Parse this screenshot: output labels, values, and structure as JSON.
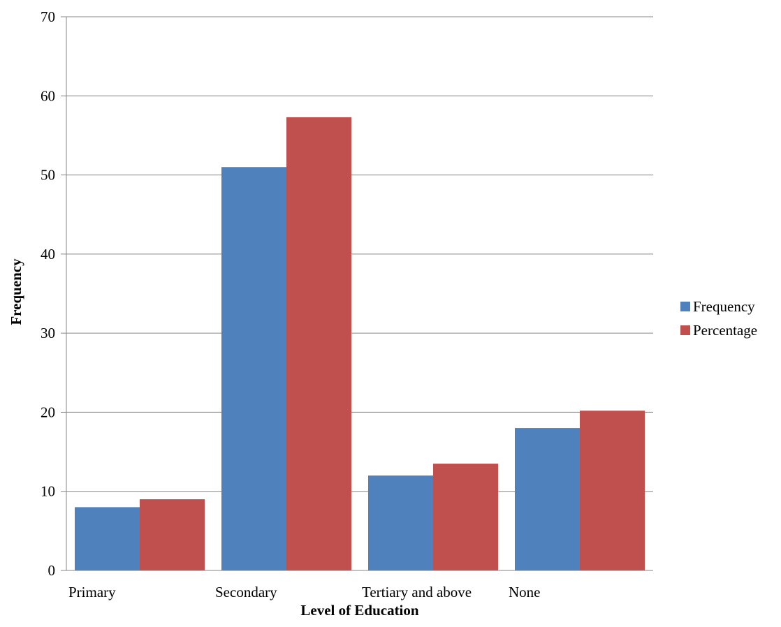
{
  "chart_data": {
    "type": "bar",
    "title": "",
    "xlabel": "Level of Education",
    "ylabel": "Frequency",
    "categories": [
      "Primary",
      "Secondary",
      "Tertiary and above",
      "None"
    ],
    "series": [
      {
        "name": "Frequency",
        "values": [
          8,
          51,
          12,
          18
        ],
        "color": "#4f81bd"
      },
      {
        "name": "Percentage",
        "values": [
          9.0,
          57.3,
          13.5,
          20.2
        ],
        "color": "#c0504d"
      }
    ],
    "ylim": [
      0,
      70
    ],
    "yticks": [
      0,
      10,
      20,
      30,
      40,
      50,
      60,
      70
    ],
    "grid": true,
    "legend": "right"
  }
}
